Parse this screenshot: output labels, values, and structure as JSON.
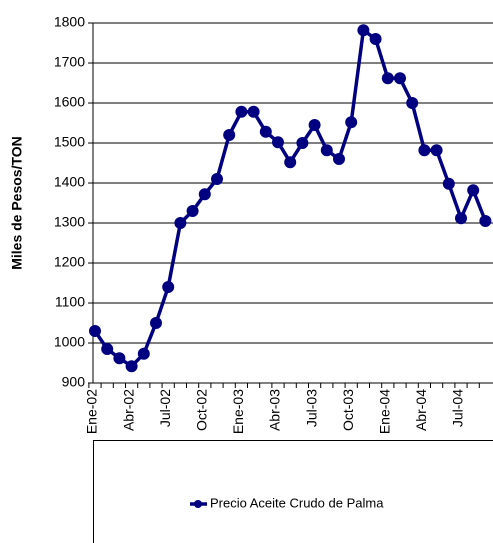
{
  "chart_data": {
    "type": "line",
    "y_label": "Miles de Pesos/TON",
    "categories": [
      "Ene-02",
      null,
      null,
      "Abr-02",
      null,
      null,
      "Jul-02",
      null,
      null,
      "Oct-02",
      null,
      null,
      "Ene-03",
      null,
      null,
      "Abr-03",
      null,
      null,
      "Jul-03",
      null,
      null,
      "Oct-03",
      null,
      null,
      "Ene-04",
      null,
      null,
      "Abr-04",
      null,
      null,
      "Jul-04",
      null,
      null
    ],
    "series": [
      {
        "name": "Precio Aceite Crudo de Palma",
        "color": "#000080",
        "values": [
          1030,
          985,
          962,
          942,
          973,
          1050,
          1140,
          1300,
          1330,
          1372,
          1410,
          1520,
          1578,
          1578,
          1528,
          1502,
          1452,
          1500,
          1545,
          1482,
          1460,
          1552,
          1782,
          1760,
          1662,
          1662,
          1600,
          1482,
          1482,
          1398,
          1312,
          1382,
          1305
        ]
      }
    ],
    "ylim": [
      900,
      1800
    ],
    "yticks": [
      900,
      1000,
      1100,
      1200,
      1300,
      1400,
      1500,
      1600,
      1700,
      1800
    ],
    "grid": true
  }
}
